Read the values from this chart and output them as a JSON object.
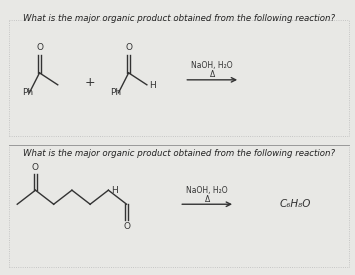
{
  "bg_color": "#e8e8e5",
  "panel_bg": "#ffffff",
  "border_color": "#aaaaaa",
  "text_color": "#222222",
  "line_color": "#333333",
  "question1": "What is the major organic product obtained from the following reaction?",
  "question2": "What is the major organic product obtained from the following reaction?",
  "reagent1_line1": "NaOH, H₂O",
  "reagent1_line2": "Δ",
  "reagent2_line1": "NaOH, H₂O",
  "reagent2_line2": "Δ",
  "product2": "C₆H₈O",
  "plus": "+"
}
